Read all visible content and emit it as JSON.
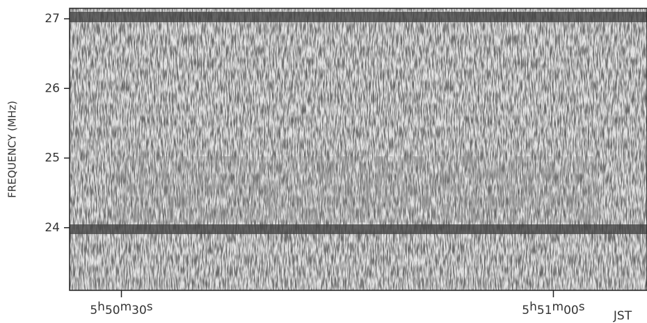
{
  "chart_data": {
    "type": "spectrogram",
    "ylabel": "FREQUENCY (MHz)",
    "ylim": [
      23.1,
      27.15
    ],
    "yticks": [
      24,
      25,
      26,
      27
    ],
    "xlim": [
      21026.4,
      21066.5
    ],
    "xticks": [
      {
        "value": 21030,
        "label": "5h50m30s"
      },
      {
        "value": 21060,
        "label": "5h51m00s"
      }
    ],
    "xunit": "JST"
  }
}
